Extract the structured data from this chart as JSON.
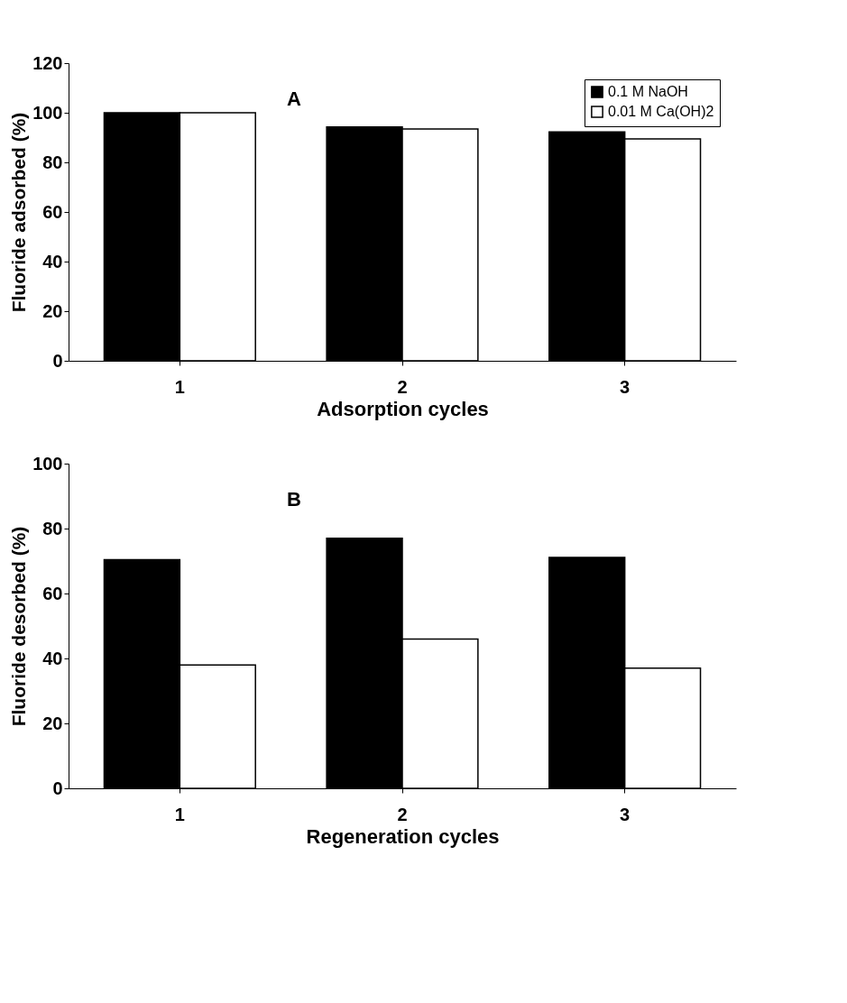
{
  "chart_data": [
    {
      "type": "bar",
      "annotations": [
        "A"
      ],
      "xlabel": "Adsorption cycles",
      "ylabel": "Fluoride adsorbed (%)",
      "categories": [
        "1",
        "2",
        "3"
      ],
      "series": [
        {
          "name": "0.1 M NaOH",
          "color": "#000000",
          "values": [
            100,
            94.3,
            92.3
          ]
        },
        {
          "name": "0.01 M Ca(OH)2",
          "color": "#ffffff",
          "values": [
            100,
            93.5,
            89.5
          ]
        }
      ],
      "ylim": [
        0,
        120
      ],
      "yticks": [
        0,
        20,
        40,
        60,
        80,
        100,
        120
      ],
      "grid": false,
      "legend": "top right"
    },
    {
      "type": "bar",
      "annotations": [
        "B"
      ],
      "xlabel": "Regeneration cycles",
      "ylabel": "Fluoride desorbed (%)",
      "categories": [
        "1",
        "2",
        "3"
      ],
      "series": [
        {
          "color": "#000000",
          "values": [
            70.4,
            77,
            71.1
          ]
        },
        {
          "color": "#ffffff",
          "values": [
            38,
            46,
            37
          ]
        }
      ],
      "ylim": [
        0,
        100
      ],
      "yticks": [
        0,
        20,
        40,
        60,
        80,
        100
      ],
      "grid": false,
      "legend": false
    }
  ]
}
